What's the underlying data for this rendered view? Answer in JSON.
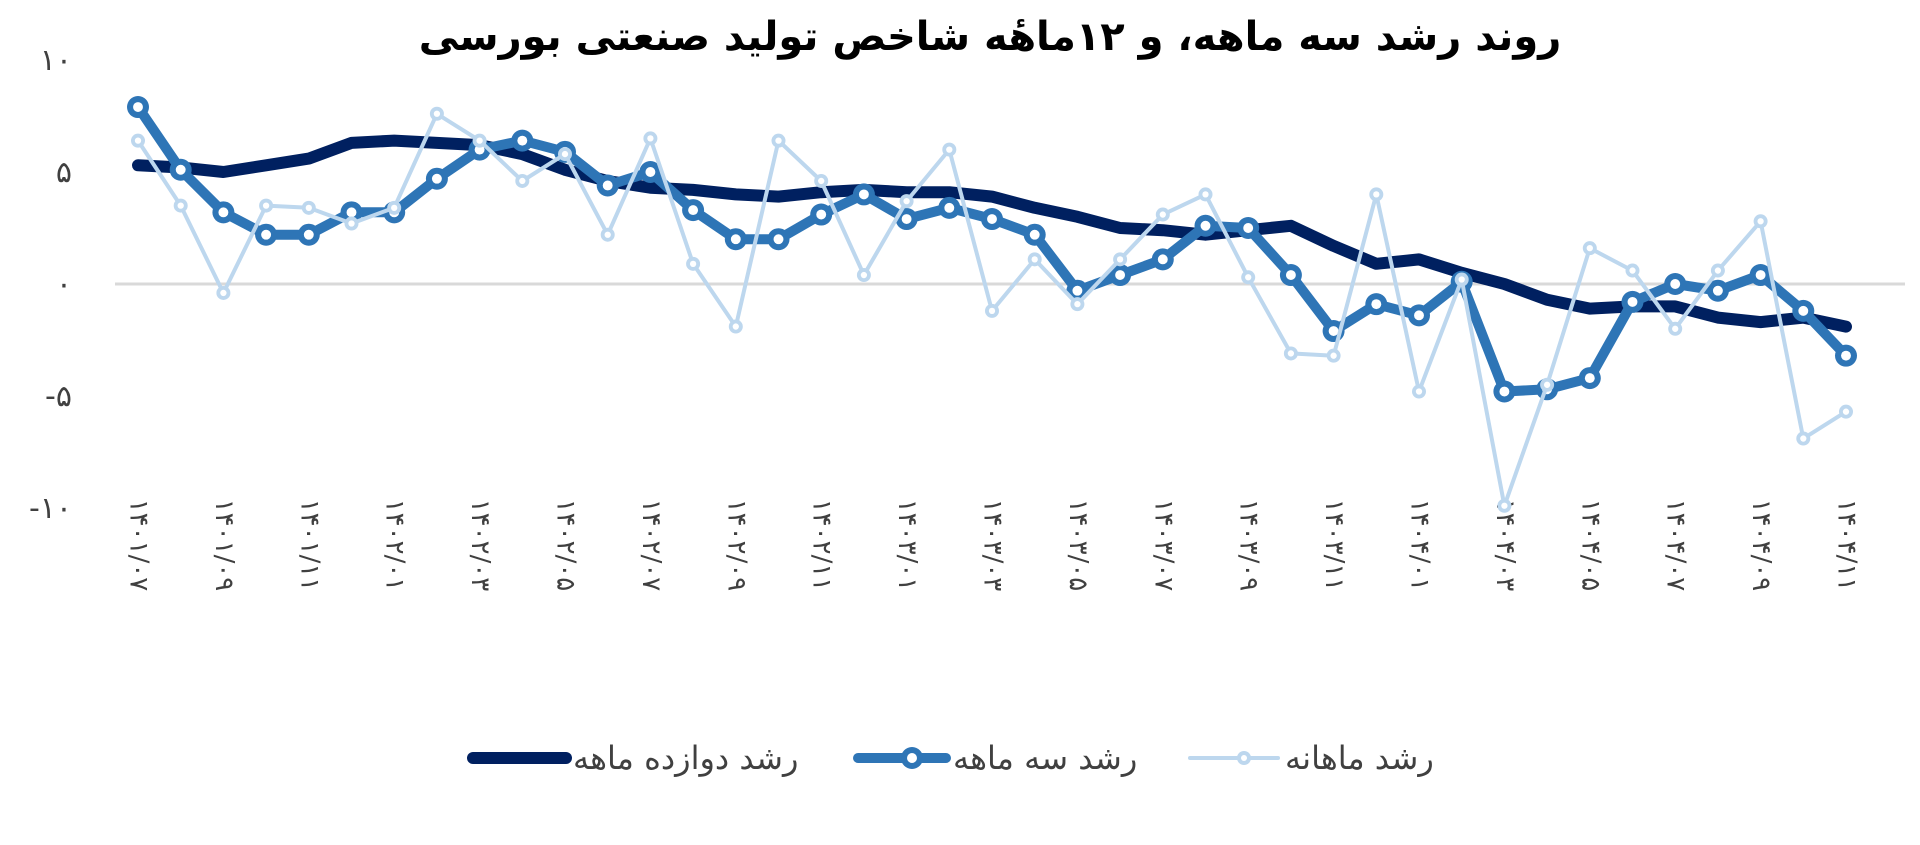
{
  "chart_data": {
    "type": "line",
    "title": "روند رشد سه ماهه، و ۱۲ماهٔه شاخص تولید صنعتی بورسی",
    "xlabel": "",
    "ylabel": "",
    "ylim": [
      -10,
      10
    ],
    "yticks": [
      {
        "value": 10,
        "label": "۱۰"
      },
      {
        "value": 5,
        "label": "۵"
      },
      {
        "value": 0,
        "label": "۰"
      },
      {
        "value": -5,
        "label": "-۵"
      },
      {
        "value": -10,
        "label": "-۱۰"
      }
    ],
    "x_tick_labels": [
      "۱۴۰۱/۰۷",
      "۱۴۰۱/۰۹",
      "۱۴۰۱/۱۱",
      "۱۴۰۲/۰۱",
      "۱۴۰۲/۰۳",
      "۱۴۰۲/۰۵",
      "۱۴۰۲/۰۷",
      "۱۴۰۲/۰۹",
      "۱۴۰۲/۱۱",
      "۱۴۰۳/۰۱",
      "۱۴۰۳/۰۳",
      "۱۴۰۳/۰۵",
      "۱۴۰۳/۰۷",
      "۱۴۰۳/۰۹",
      "۱۴۰۳/۱۱",
      "۱۴۰۴/۰۱",
      "۱۴۰۴/۰۳",
      "۱۴۰۴/۰۵",
      "۱۴۰۴/۰۷",
      "۱۴۰۴/۰۹",
      "۱۴۰۴/۱۱"
    ],
    "legend_position": "bottom",
    "series": [
      {
        "name": "رشد ماهانه",
        "color": "#bdd7ee",
        "marker": true,
        "values": [
          6.4,
          3.5,
          -0.4,
          3.5,
          3.4,
          2.7,
          3.4,
          7.6,
          6.4,
          4.6,
          5.8,
          2.2,
          6.5,
          0.9,
          -1.9,
          6.4,
          4.6,
          0.4,
          3.7,
          6.0,
          -1.2,
          1.1,
          -0.9,
          1.1,
          3.1,
          4.0,
          0.3,
          -3.1,
          -3.2,
          4.0,
          -4.8,
          0.2,
          -9.9,
          -4.5,
          1.6,
          0.6,
          -2.0,
          0.6,
          2.8,
          -6.9,
          -5.7
        ]
      },
      {
        "name": "رشد سه ماهه",
        "color": "#2e75b6",
        "marker": true,
        "values": [
          7.9,
          5.1,
          3.2,
          2.2,
          2.2,
          3.2,
          3.2,
          4.7,
          6.0,
          6.4,
          5.9,
          4.4,
          5.0,
          3.3,
          2.0,
          2.0,
          3.1,
          4.0,
          2.9,
          3.4,
          2.9,
          2.2,
          -0.3,
          0.4,
          1.1,
          2.6,
          2.5,
          0.4,
          -2.1,
          -0.9,
          -1.4,
          0.1,
          -4.8,
          -4.7,
          -4.2,
          -0.8,
          0.0,
          -0.3,
          0.4,
          -1.2,
          -3.2
        ]
      },
      {
        "name": "رشد دوازده ماهه",
        "color": "#002060",
        "marker": false,
        "values": [
          5.3,
          5.2,
          5.0,
          5.3,
          5.6,
          6.3,
          6.4,
          6.3,
          6.2,
          5.8,
          5.1,
          4.6,
          4.3,
          4.2,
          4.0,
          3.9,
          4.1,
          4.2,
          4.1,
          4.1,
          3.9,
          3.4,
          3.0,
          2.5,
          2.4,
          2.2,
          2.4,
          2.6,
          1.7,
          0.9,
          1.1,
          0.5,
          0.0,
          -0.7,
          -1.1,
          -1.0,
          -1.0,
          -1.5,
          -1.7,
          -1.5,
          -1.9
        ]
      }
    ]
  }
}
